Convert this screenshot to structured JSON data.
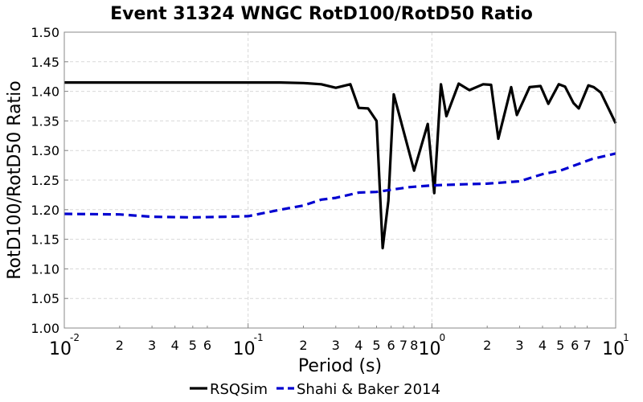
{
  "chart_data": {
    "type": "line",
    "title": "Event 31324 WNGC RotD100/RotD50 Ratio",
    "xlabel": "Period (s)",
    "ylabel": "RotD100/RotD50 Ratio",
    "xscale": "log",
    "xlim": [
      0.01,
      10
    ],
    "ylim": [
      1.0,
      1.5
    ],
    "yticks": [
      "1.00",
      "1.05",
      "1.10",
      "1.15",
      "1.20",
      "1.25",
      "1.30",
      "1.35",
      "1.40",
      "1.45",
      "1.50"
    ],
    "x_major_ticks": [
      {
        "base": "10",
        "exp": "-2",
        "value": 0.01
      },
      {
        "base": "10",
        "exp": "-1",
        "value": 0.1
      },
      {
        "base": "10",
        "exp": "0",
        "value": 1
      },
      {
        "base": "10",
        "exp": "1",
        "value": 10
      }
    ],
    "x_minor_tick_labels": [
      {
        "value": 0.02,
        "label": "2"
      },
      {
        "value": 0.03,
        "label": "3"
      },
      {
        "value": 0.04,
        "label": "4"
      },
      {
        "value": 0.05,
        "label": "5"
      },
      {
        "value": 0.06,
        "label": "6"
      },
      {
        "value": 0.2,
        "label": "2"
      },
      {
        "value": 0.3,
        "label": "3"
      },
      {
        "value": 0.4,
        "label": "4"
      },
      {
        "value": 0.5,
        "label": "5"
      },
      {
        "value": 0.6,
        "label": "6"
      },
      {
        "value": 0.7,
        "label": "7"
      },
      {
        "value": 0.8,
        "label": "8"
      },
      {
        "value": 2,
        "label": "2"
      },
      {
        "value": 3,
        "label": "3"
      },
      {
        "value": 4,
        "label": "4"
      },
      {
        "value": 5,
        "label": "5"
      },
      {
        "value": 6,
        "label": "6"
      },
      {
        "value": 7,
        "label": "7"
      }
    ],
    "grid": true,
    "legend_position": "bottom",
    "series": [
      {
        "name": "RSQSim",
        "color": "#000000",
        "style": "solid",
        "points": [
          [
            0.01,
            1.415
          ],
          [
            0.02,
            1.415
          ],
          [
            0.05,
            1.415
          ],
          [
            0.1,
            1.415
          ],
          [
            0.15,
            1.415
          ],
          [
            0.2,
            1.414
          ],
          [
            0.25,
            1.412
          ],
          [
            0.3,
            1.406
          ],
          [
            0.36,
            1.412
          ],
          [
            0.4,
            1.372
          ],
          [
            0.45,
            1.371
          ],
          [
            0.5,
            1.35
          ],
          [
            0.54,
            1.135
          ],
          [
            0.58,
            1.215
          ],
          [
            0.62,
            1.395
          ],
          [
            0.8,
            1.266
          ],
          [
            0.95,
            1.345
          ],
          [
            1.03,
            1.228
          ],
          [
            1.12,
            1.412
          ],
          [
            1.2,
            1.358
          ],
          [
            1.4,
            1.413
          ],
          [
            1.6,
            1.402
          ],
          [
            1.9,
            1.412
          ],
          [
            2.1,
            1.411
          ],
          [
            2.3,
            1.32
          ],
          [
            2.7,
            1.407
          ],
          [
            2.9,
            1.36
          ],
          [
            3.4,
            1.407
          ],
          [
            3.9,
            1.409
          ],
          [
            4.3,
            1.379
          ],
          [
            4.9,
            1.412
          ],
          [
            5.3,
            1.408
          ],
          [
            5.9,
            1.38
          ],
          [
            6.3,
            1.371
          ],
          [
            7.1,
            1.41
          ],
          [
            7.6,
            1.407
          ],
          [
            8.3,
            1.398
          ],
          [
            10,
            1.346
          ]
        ]
      },
      {
        "name": "Shahi & Baker 2014",
        "color": "#0000d0",
        "style": "dashed",
        "points": [
          [
            0.01,
            1.193
          ],
          [
            0.02,
            1.192
          ],
          [
            0.03,
            1.188
          ],
          [
            0.05,
            1.187
          ],
          [
            0.075,
            1.188
          ],
          [
            0.1,
            1.189
          ],
          [
            0.15,
            1.2
          ],
          [
            0.2,
            1.207
          ],
          [
            0.25,
            1.217
          ],
          [
            0.3,
            1.22
          ],
          [
            0.4,
            1.229
          ],
          [
            0.5,
            1.23
          ],
          [
            0.75,
            1.238
          ],
          [
            1.0,
            1.241
          ],
          [
            1.5,
            1.243
          ],
          [
            2.0,
            1.244
          ],
          [
            3.0,
            1.248
          ],
          [
            4.0,
            1.26
          ],
          [
            5.0,
            1.266
          ],
          [
            7.5,
            1.286
          ],
          [
            10,
            1.295
          ]
        ]
      }
    ]
  }
}
